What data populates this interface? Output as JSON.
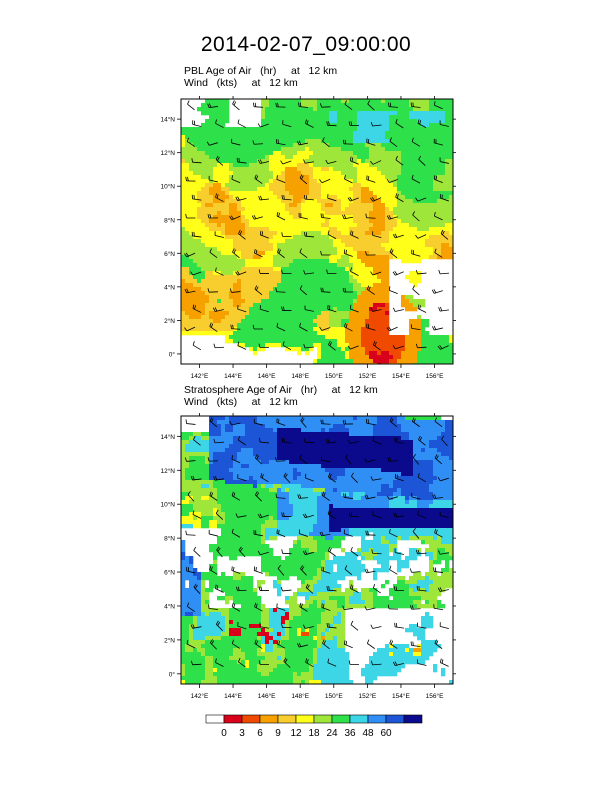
{
  "title": "2014-02-07_09:00:00",
  "chart_data": [
    {
      "type": "heatmap",
      "title_line1": "PBL Age of Air   (hr)     at   12 km",
      "title_line2": "Wind   (kts)     at   12 km",
      "x_ticks": [
        "142°E",
        "144°E",
        "146°E",
        "148°E",
        "150°E",
        "152°E",
        "154°E",
        "156°E"
      ],
      "y_ticks": [
        "14°N",
        "12°N",
        "10°N",
        "8°N",
        "6°N",
        "4°N",
        "2°N",
        "0°"
      ],
      "x_range": [
        140.9,
        157.1
      ],
      "y_range": [
        -0.6,
        15.2
      ],
      "field": "pbl",
      "has_wind_barbs": true
    },
    {
      "type": "heatmap",
      "title_line1": "Stratosphere Age of Air   (hr)     at   12 km",
      "title_line2": "Wind   (kts)     at   12 km",
      "x_ticks": [
        "142°E",
        "144°E",
        "146°E",
        "148°E",
        "150°E",
        "152°E",
        "154°E",
        "156°E"
      ],
      "y_ticks": [
        "14°N",
        "12°N",
        "10°N",
        "8°N",
        "6°N",
        "4°N",
        "2°N",
        "0°"
      ],
      "x_range": [
        140.9,
        157.1
      ],
      "y_range": [
        -0.6,
        15.2
      ],
      "field": "strat",
      "has_wind_barbs": true
    }
  ],
  "colorbar": {
    "labels": [
      "0",
      "3",
      "6",
      "9",
      "12",
      "18",
      "24",
      "36",
      "48",
      "60"
    ],
    "colors": [
      "#ffffff",
      "#d9001b",
      "#f04a00",
      "#f7a100",
      "#f7ce2e",
      "#ffff1a",
      "#9ee63a",
      "#2ee14a",
      "#3cd6e6",
      "#2f8ff5",
      "#1c56d6",
      "#0b0a8c"
    ]
  }
}
